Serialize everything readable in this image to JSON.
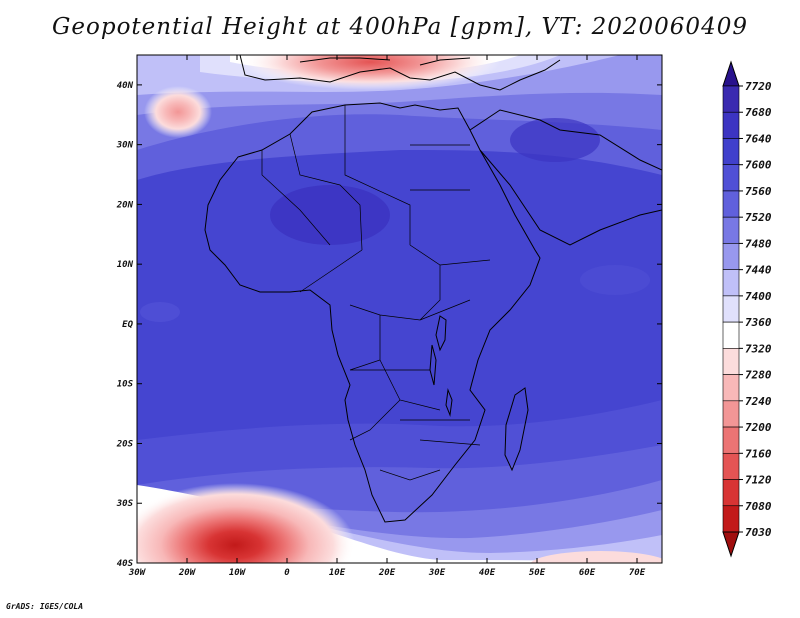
{
  "title": "Geopotential Height at 400hPa [gpm], VT: 2020060409",
  "credit": "GrADS: IGES/COLA",
  "map": {
    "variable": "Geopotential Height",
    "level": "400hPa",
    "units": "gpm",
    "valid_time": "2020060409",
    "lon_range": [
      -30,
      75
    ],
    "lat_range": [
      -40,
      45
    ],
    "lon_ticks": [
      {
        "v": -30,
        "label": "30W"
      },
      {
        "v": -20,
        "label": "20W"
      },
      {
        "v": -10,
        "label": "10W"
      },
      {
        "v": 0,
        "label": "0"
      },
      {
        "v": 10,
        "label": "10E"
      },
      {
        "v": 20,
        "label": "20E"
      },
      {
        "v": 30,
        "label": "30E"
      },
      {
        "v": 40,
        "label": "40E"
      },
      {
        "v": 50,
        "label": "50E"
      },
      {
        "v": 60,
        "label": "60E"
      },
      {
        "v": 70,
        "label": "70E"
      }
    ],
    "lat_ticks": [
      {
        "v": 40,
        "label": "40N"
      },
      {
        "v": 30,
        "label": "30N"
      },
      {
        "v": 20,
        "label": "20N"
      },
      {
        "v": 10,
        "label": "10N"
      },
      {
        "v": 0,
        "label": "EQ"
      },
      {
        "v": -10,
        "label": "10S"
      },
      {
        "v": -20,
        "label": "20S"
      },
      {
        "v": -30,
        "label": "30S"
      },
      {
        "v": -40,
        "label": "40S"
      }
    ]
  },
  "colorbar": {
    "levels": [
      "7720",
      "7680",
      "7640",
      "7600",
      "7560",
      "7520",
      "7480",
      "7440",
      "7400",
      "7360",
      "7320",
      "7280",
      "7240",
      "7200",
      "7160",
      "7120",
      "7080",
      "7030"
    ],
    "colors": [
      "#28128c",
      "#3a2ab0",
      "#3c34c2",
      "#4040cc",
      "#5050d6",
      "#6060dc",
      "#7878e4",
      "#9898ee",
      "#c0c0f8",
      "#e0e0fc",
      "#ffffff",
      "#fcdcdc",
      "#f8b8b8",
      "#f29696",
      "#ec7474",
      "#e45454",
      "#d83434",
      "#c21a1a",
      "#a00e0e"
    ]
  }
}
